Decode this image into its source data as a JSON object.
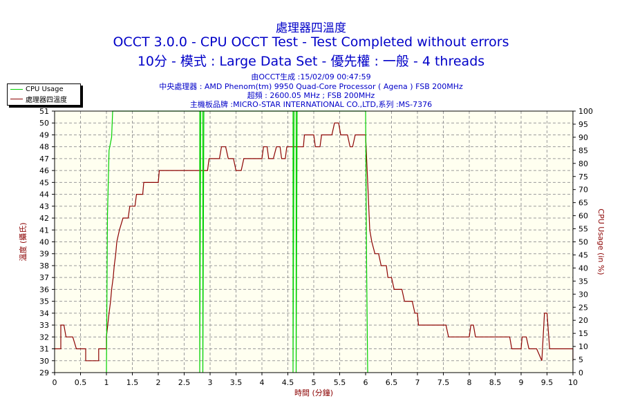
{
  "header": {
    "line1": "處理器四溫度",
    "line2": "OCCT 3.0.0 - CPU OCCT Test - Test Completed without errors",
    "line3": "10分 - 模式 : Large Data Set - 優先權 : 一般 - 4 threads"
  },
  "info": {
    "generated": "由OCCT生成 :15/02/09 00:47:59",
    "cpu": "中央處理器 : AMD Phenom(tm) 9950 Quad-Core Processor ( Agena ) FSB 200MHz",
    "freq": "超頻 : 2600.05 MHz ; FSB 200MHz",
    "board": "主機板品牌 :MICRO-STAR INTERNATIONAL CO.,LTD,系列 :MS-7376"
  },
  "legend": {
    "cpu_usage": "CPU Usage",
    "temp": "處理器四溫度"
  },
  "chart_data": {
    "type": "line",
    "xlabel": "時間 (分鐘)",
    "ylabel_left": "溫度 (攝氏)",
    "ylabel_right": "CPU Usage (in %)",
    "xlim": [
      0,
      10
    ],
    "ylim_left": [
      29,
      51
    ],
    "ylim_right": [
      0,
      100
    ],
    "x_ticks": [
      "0",
      "0.5",
      "1",
      "1.5",
      "2",
      "2.5",
      "3",
      "3.5",
      "4",
      "4.5",
      "5",
      "5.5",
      "6",
      "6.5",
      "7",
      "7.5",
      "8",
      "8.5",
      "9",
      "9.5",
      "10"
    ],
    "y_left_ticks": [
      29,
      30,
      31,
      32,
      33,
      34,
      35,
      36,
      37,
      38,
      39,
      40,
      41,
      42,
      43,
      44,
      45,
      46,
      47,
      48,
      49,
      50,
      51
    ],
    "y_right_ticks": [
      0,
      5,
      10,
      15,
      20,
      25,
      30,
      35,
      40,
      45,
      50,
      55,
      60,
      65,
      70,
      75,
      80,
      85,
      90,
      95,
      100
    ],
    "grid": true,
    "series": [
      {
        "name": "處理器四溫度",
        "axis": "left",
        "color": "#8b0000",
        "points": [
          [
            0,
            31
          ],
          [
            0.12,
            31
          ],
          [
            0.12,
            33
          ],
          [
            0.18,
            33
          ],
          [
            0.22,
            32
          ],
          [
            0.35,
            32
          ],
          [
            0.42,
            31
          ],
          [
            0.6,
            31
          ],
          [
            0.6,
            30
          ],
          [
            0.85,
            30
          ],
          [
            0.85,
            31
          ],
          [
            1.0,
            31
          ],
          [
            1.0,
            32
          ],
          [
            1.05,
            34
          ],
          [
            1.08,
            35
          ],
          [
            1.1,
            36
          ],
          [
            1.13,
            37
          ],
          [
            1.15,
            38
          ],
          [
            1.18,
            39
          ],
          [
            1.2,
            40
          ],
          [
            1.25,
            41
          ],
          [
            1.32,
            42
          ],
          [
            1.42,
            42
          ],
          [
            1.45,
            43
          ],
          [
            1.55,
            43
          ],
          [
            1.58,
            44
          ],
          [
            1.7,
            44
          ],
          [
            1.72,
            45
          ],
          [
            2.0,
            45
          ],
          [
            2.02,
            46
          ],
          [
            2.95,
            46
          ],
          [
            2.98,
            47
          ],
          [
            3.18,
            47
          ],
          [
            3.22,
            48
          ],
          [
            3.3,
            48
          ],
          [
            3.35,
            47
          ],
          [
            3.45,
            47
          ],
          [
            3.5,
            46
          ],
          [
            3.6,
            46
          ],
          [
            3.65,
            47
          ],
          [
            4.0,
            47
          ],
          [
            4.03,
            48
          ],
          [
            4.1,
            48
          ],
          [
            4.13,
            47
          ],
          [
            4.22,
            47
          ],
          [
            4.28,
            48
          ],
          [
            4.35,
            48
          ],
          [
            4.38,
            47
          ],
          [
            4.45,
            47
          ],
          [
            4.48,
            48
          ],
          [
            4.8,
            48
          ],
          [
            4.82,
            49
          ],
          [
            5.0,
            49
          ],
          [
            5.03,
            48
          ],
          [
            5.12,
            48
          ],
          [
            5.15,
            49
          ],
          [
            5.35,
            49
          ],
          [
            5.4,
            50
          ],
          [
            5.48,
            50
          ],
          [
            5.52,
            49
          ],
          [
            5.65,
            49
          ],
          [
            5.7,
            48
          ],
          [
            5.75,
            48
          ],
          [
            5.8,
            49
          ],
          [
            6.0,
            49
          ],
          [
            6.02,
            47
          ],
          [
            6.05,
            44
          ],
          [
            6.08,
            41
          ],
          [
            6.12,
            40
          ],
          [
            6.18,
            39
          ],
          [
            6.25,
            39
          ],
          [
            6.3,
            38
          ],
          [
            6.4,
            38
          ],
          [
            6.43,
            37
          ],
          [
            6.5,
            37
          ],
          [
            6.55,
            36
          ],
          [
            6.7,
            36
          ],
          [
            6.75,
            35
          ],
          [
            6.9,
            35
          ],
          [
            6.95,
            34
          ],
          [
            7.0,
            34
          ],
          [
            7.02,
            33
          ],
          [
            7.55,
            33
          ],
          [
            7.6,
            32
          ],
          [
            8.0,
            32
          ],
          [
            8.03,
            33
          ],
          [
            8.08,
            33
          ],
          [
            8.12,
            32
          ],
          [
            8.78,
            32
          ],
          [
            8.82,
            31
          ],
          [
            9.0,
            31
          ],
          [
            9.02,
            32
          ],
          [
            9.1,
            32
          ],
          [
            9.15,
            31
          ],
          [
            9.3,
            31
          ],
          [
            9.4,
            30
          ],
          [
            9.45,
            34
          ],
          [
            9.5,
            34
          ],
          [
            9.55,
            31
          ],
          [
            10.0,
            31
          ],
          [
            10.0,
            30
          ]
        ]
      },
      {
        "name": "CPU Usage",
        "axis": "right",
        "color": "#00d000",
        "points": [
          [
            1.0,
            0
          ],
          [
            1.02,
            60
          ],
          [
            1.05,
            85
          ],
          [
            1.1,
            90
          ],
          [
            1.12,
            100
          ],
          [
            2.8,
            100
          ],
          [
            2.8,
            0
          ],
          [
            2.82,
            100
          ],
          [
            2.86,
            100
          ],
          [
            2.86,
            0
          ],
          [
            2.88,
            100
          ],
          [
            4.6,
            100
          ],
          [
            4.6,
            0
          ],
          [
            4.62,
            100
          ],
          [
            4.66,
            100
          ],
          [
            4.66,
            0
          ],
          [
            4.68,
            100
          ],
          [
            6.0,
            100
          ],
          [
            6.02,
            40
          ],
          [
            6.04,
            0
          ]
        ]
      }
    ]
  }
}
